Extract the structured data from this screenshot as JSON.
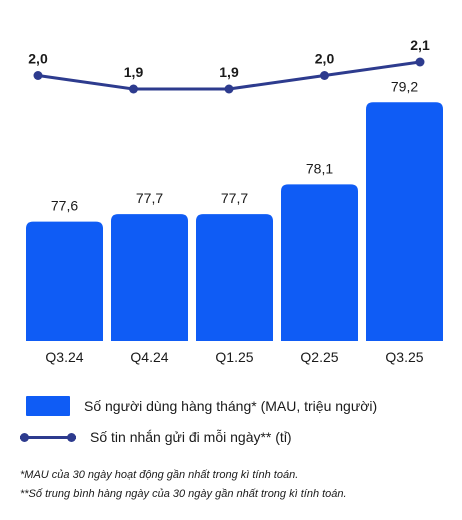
{
  "chart_data": {
    "type": "bar",
    "categories": [
      "Q3.24",
      "Q4.24",
      "Q1.25",
      "Q2.25",
      "Q3.25"
    ],
    "series": [
      {
        "name": "Số người dùng hàng tháng* (MAU, triệu người)",
        "type": "bar",
        "values": [
          77.6,
          77.7,
          77.7,
          78.1,
          79.2
        ],
        "labels": [
          "77,6",
          "77,7",
          "77,7",
          "78,1",
          "79,2"
        ],
        "color": "#0f5cf5"
      },
      {
        "name": "Số tin nhắn gửi đi mỗi ngày** (tỉ)",
        "type": "line",
        "values": [
          2.0,
          1.9,
          1.9,
          2.0,
          2.1
        ],
        "labels": [
          "2,0",
          "1,9",
          "1,9",
          "2,0",
          "2,1"
        ],
        "color": "#2d3b8e"
      }
    ],
    "grid": false,
    "legend_position": "bottom"
  },
  "footnotes": [
    "*MAU của 30 ngày hoạt động gần nhất trong kì tính toán.",
    "**Số trung bình hàng ngày của 30 ngày gần nhất trong kì tính toán."
  ]
}
